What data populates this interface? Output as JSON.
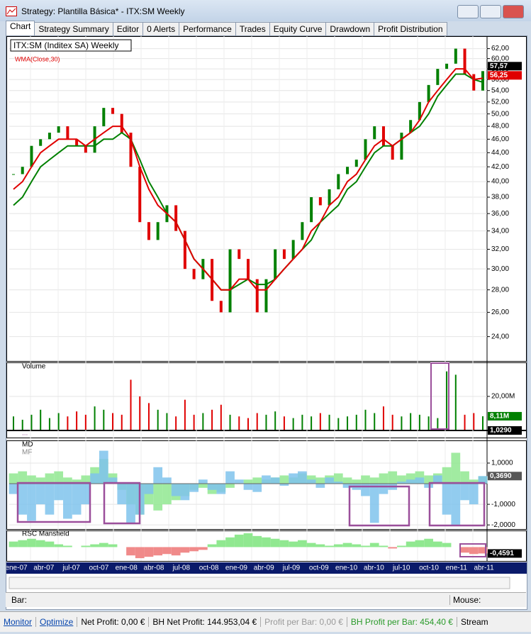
{
  "window": {
    "title": "Strategy: Plantilla Básica* - ITX:SM Weekly"
  },
  "tabs": [
    "Chart",
    "Strategy Summary",
    "Editor",
    "0 Alerts",
    "Performance",
    "Trades",
    "Equity Curve",
    "Drawdown",
    "Profit Distribution"
  ],
  "price_panel": {
    "symbol_label": "ITX:SM (Inditex SA) Weekly",
    "indicator_label": "WMA(Close,30)",
    "log_scale": true,
    "ylim": [
      23.1,
      64.3
    ],
    "yticks": [
      {
        "value": 24,
        "label": "24,00"
      },
      {
        "value": 26,
        "label": "26,00"
      },
      {
        "value": 28,
        "label": "28,00"
      },
      {
        "value": 30,
        "label": "30,00"
      },
      {
        "value": 32,
        "label": "32,00"
      },
      {
        "value": 34,
        "label": "34,00"
      },
      {
        "value": 36,
        "label": "36,00"
      },
      {
        "value": 38,
        "label": "38,00"
      },
      {
        "value": 40,
        "label": "40,00"
      },
      {
        "value": 42,
        "label": "42,00"
      },
      {
        "value": 44,
        "label": "44,00"
      },
      {
        "value": 46,
        "label": "46,00"
      },
      {
        "value": 48,
        "label": "48,00"
      },
      {
        "value": 50,
        "label": "50,00"
      },
      {
        "value": 52,
        "label": "52,00"
      },
      {
        "value": 54,
        "label": "54,00"
      },
      {
        "value": 56,
        "label": "56,00"
      },
      {
        "value": 58,
        "label": "58,00"
      },
      {
        "value": 60,
        "label": "60,00"
      },
      {
        "value": 62,
        "label": "62,00"
      }
    ],
    "close": [
      41,
      42,
      45,
      46,
      47,
      48,
      46,
      45,
      44,
      48,
      51,
      50,
      47,
      42,
      35,
      33,
      35,
      37,
      34,
      30,
      29,
      31,
      27,
      26,
      32,
      31,
      29,
      26,
      29,
      32,
      31,
      33,
      35,
      38,
      37,
      39,
      41,
      42,
      43,
      46,
      48,
      45,
      43,
      47,
      49,
      52,
      55,
      58,
      59,
      62,
      57,
      54,
      57.57
    ],
    "wma": {
      "color": "#e00000",
      "values": [
        39,
        40,
        42,
        44,
        45,
        46,
        46,
        46,
        45,
        46,
        47,
        48,
        48,
        46,
        42,
        39,
        37,
        36,
        35,
        33,
        31,
        30,
        29,
        28,
        28,
        29,
        29,
        28,
        28,
        29,
        30,
        31,
        32,
        34,
        35,
        37,
        38,
        40,
        41,
        43,
        45,
        46,
        45,
        46,
        47,
        49,
        52,
        54,
        56,
        58,
        58,
        56,
        56.25
      ]
    },
    "ma": {
      "color": "#008000",
      "values": [
        37,
        38,
        40,
        42,
        43,
        44,
        45,
        45,
        45,
        45,
        46,
        46,
        47,
        46,
        43,
        40,
        38,
        36,
        35,
        33,
        31,
        30,
        29,
        28,
        28,
        28.5,
        29,
        28.5,
        28.5,
        29,
        30,
        31,
        32,
        33,
        35,
        36,
        37,
        39,
        40,
        42,
        44,
        45,
        45,
        46,
        47,
        48,
        50,
        53,
        55,
        57,
        57,
        56,
        55.5
      ]
    },
    "last_price_label": "57,57",
    "wma_last_label": "56,25"
  },
  "volume_panel": {
    "title": "Volume",
    "ylim": [
      0,
      40.4
    ],
    "yticks": [
      {
        "value": 20,
        "label": "20,00M"
      }
    ],
    "values": [
      8,
      6,
      9,
      12,
      7,
      10,
      8,
      11,
      9,
      14,
      12,
      10,
      9,
      30,
      20,
      16,
      12,
      10,
      8,
      18,
      9,
      10,
      12,
      15,
      9,
      8,
      7,
      10,
      9,
      11,
      8,
      7,
      9,
      8,
      10,
      9,
      7,
      8,
      9,
      12,
      10,
      14,
      9,
      8,
      10,
      9,
      8,
      7,
      35,
      33,
      9,
      10,
      8.11
    ],
    "last_label": "8,11M"
  },
  "small_panel": {
    "title": "...",
    "last_label": "1,0290"
  },
  "md_panel": {
    "titles": [
      "MD",
      "MF"
    ],
    "ylim": [
      -2.2,
      2.1
    ],
    "yticks": [
      {
        "value": 1,
        "label": "1,0000"
      },
      {
        "value": -1,
        "label": "-1,0000"
      },
      {
        "value": -2,
        "label": "-2,0000"
      }
    ],
    "md": [
      -0.5,
      -1.5,
      -1.8,
      -1,
      -1.5,
      -0.8,
      -1.7,
      -1.5,
      -1,
      0.5,
      1.6,
      0.3,
      -1,
      -1.9,
      -1.5,
      -0.5,
      0.8,
      0.3,
      -0.6,
      -0.8,
      -0.4,
      0.2,
      -0.3,
      -0.5,
      0.6,
      0.2,
      -0.3,
      -0.4,
      0.4,
      0.3,
      -0.1,
      0.5,
      0.6,
      0.2,
      -0.2,
      0.3,
      0.1,
      -0.2,
      -0.3,
      -0.6,
      -1.9,
      -0.5,
      -0.3,
      0.1,
      0.2,
      0.3,
      -0.2,
      0.4,
      -1.5,
      -2,
      -0.8,
      -1,
      0.37
    ],
    "mf": [
      0.5,
      0.6,
      0.4,
      0.3,
      0.5,
      0.6,
      0.3,
      0.2,
      0.4,
      0.8,
      1.2,
      0.5,
      -0.3,
      -1,
      -1.5,
      -1,
      -1.3,
      -1,
      -0.8,
      -0.6,
      -0.3,
      -0.2,
      -0.5,
      -0.4,
      -0.2,
      0,
      0.2,
      0.3,
      0.2,
      0.3,
      0.4,
      0.3,
      0.5,
      0.4,
      0.3,
      0.4,
      0.5,
      0.3,
      0.2,
      0.4,
      0.3,
      0.5,
      0.6,
      0.4,
      0.5,
      0.6,
      0.4,
      0.5,
      0.8,
      1.5,
      0.6,
      0.2,
      0.36
    ],
    "last_label": "0,3690"
  },
  "rsc_panel": {
    "title": "RSC Mansfield",
    "ylim": [
      -1,
      1.2
    ],
    "values": [
      0.4,
      0.5,
      0.6,
      0.5,
      0.4,
      0.2,
      0.1,
      0,
      0.1,
      0.2,
      0.3,
      0.2,
      0,
      -0.6,
      -0.8,
      -0.7,
      -0.6,
      -0.5,
      -0.6,
      -0.4,
      -0.3,
      -0.2,
      0.2,
      0.5,
      0.7,
      0.9,
      1,
      0.8,
      0.7,
      0.6,
      0.5,
      0.4,
      0.5,
      0.3,
      0.2,
      0.1,
      0.2,
      0.3,
      0.2,
      0.1,
      0.3,
      0.1,
      -0.1,
      0.1,
      0.4,
      0.5,
      0.6,
      0.4,
      0.3,
      0,
      -0.4,
      -0.5,
      -0.46
    ],
    "last_label": "-0,4591"
  },
  "x_axis": {
    "labels": [
      "ene-07",
      "abr-07",
      "jul-07",
      "oct-07",
      "ene-08",
      "abr-08",
      "jul-08",
      "oct-08",
      "ene-09",
      "abr-09",
      "jul-09",
      "oct-09",
      "ene-10",
      "abr-10",
      "jul-10",
      "oct-10",
      "ene-11",
      "abr-11"
    ]
  },
  "status": {
    "bar": "Bar:",
    "mouse": "Mouse:"
  },
  "footer": {
    "monitor": "Monitor",
    "optimize": "Optimize",
    "net_profit": "Net Profit: 0,00 €",
    "bh_net_profit": "BH Net Profit: 144.953,04 €",
    "profit_per_bar": "Profit per Bar: 0,00 €",
    "bh_profit_per_bar": "BH Profit per Bar: 454,40 €",
    "stream": "Stream"
  }
}
